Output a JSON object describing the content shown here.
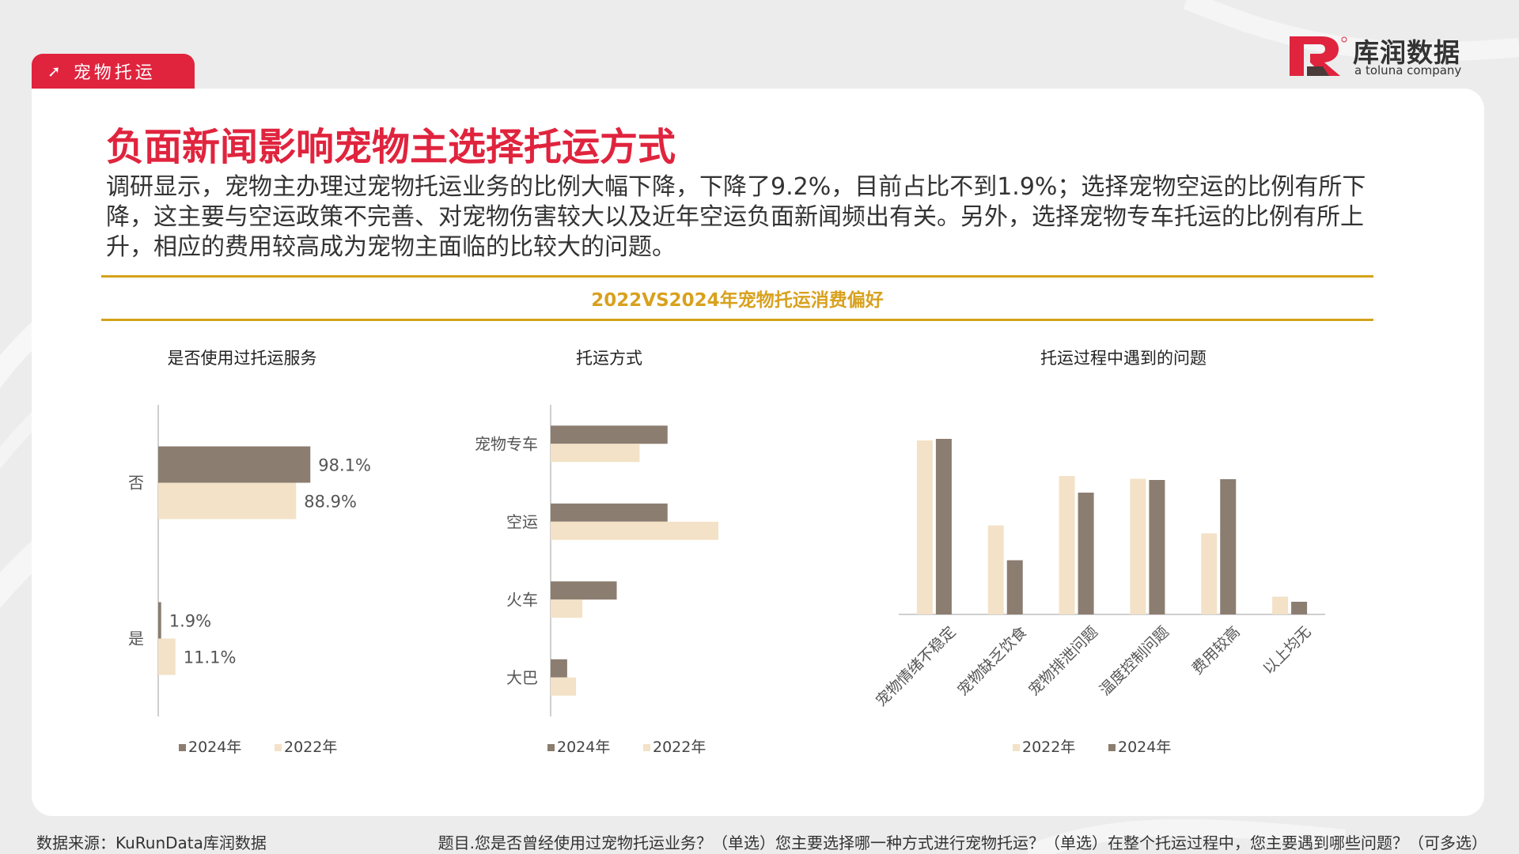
{
  "tab": {
    "label": "宠物托运"
  },
  "logo": {
    "cn": "库润数据",
    "en": "a toluna company"
  },
  "title": "负面新闻影响宠物主选择托运方式",
  "description": "调研显示，宠物主办理过宠物托运业务的比例大幅下降，下降了9.2%，目前占比不到1.9%；选择宠物空运的比例有所下降，这主要与空运政策不完善、对宠物伤害较大以及近年空运负面新闻频出有关。另外，选择宠物专车托运的比例有所上升，相应的费用较高成为宠物主面临的比较大的问题。",
  "banner": "2022VS2024年宠物托运消费偏好",
  "colors": {
    "accent": "#e0243e",
    "gold": "#d4a21a",
    "series2024": "#8b7d70",
    "series2022": "#f3e2c7"
  },
  "chart_data": [
    {
      "type": "bar",
      "orientation": "horizontal",
      "title": "是否使用过托运服务",
      "categories": [
        "否",
        "是"
      ],
      "series": [
        {
          "name": "2024年",
          "values": [
            98.1,
            1.9
          ],
          "labels": [
            "98.1%",
            "1.9%"
          ]
        },
        {
          "name": "2022年",
          "values": [
            88.9,
            11.1
          ],
          "labels": [
            "88.9%",
            "11.1%"
          ]
        }
      ],
      "xlim": [
        0,
        100
      ],
      "legend": [
        "2024年",
        "2022年"
      ],
      "legend_position": "bottom"
    },
    {
      "type": "bar",
      "orientation": "horizontal",
      "title": "托运方式",
      "categories": [
        "宠物专车",
        "空运",
        "火车",
        "大巴"
      ],
      "series": [
        {
          "name": "2024年",
          "values": [
            46,
            46,
            26,
            6.5
          ]
        },
        {
          "name": "2022年",
          "values": [
            35,
            66,
            12.5,
            10
          ]
        }
      ],
      "xlim": [
        0,
        80
      ],
      "legend": [
        "2024年",
        "2022年"
      ],
      "legend_position": "bottom"
    },
    {
      "type": "bar",
      "orientation": "vertical",
      "title": "托运过程中遇到的问题",
      "categories": [
        "宠物情绪不稳定",
        "宠物缺乏饮食",
        "宠物排泄问题",
        "温度控制问题",
        "费用较高",
        "以上均无"
      ],
      "series": [
        {
          "name": "2022年",
          "values": [
            44,
            22.5,
            35,
            34.3,
            20.5,
            4.5
          ]
        },
        {
          "name": "2024年",
          "values": [
            44.4,
            13.7,
            30.8,
            34,
            34.2,
            3.2
          ]
        }
      ],
      "ylim": [
        0,
        50
      ],
      "legend": [
        "2022年",
        "2024年"
      ],
      "legend_position": "bottom"
    }
  ],
  "footer": {
    "source": "数据来源：KuRunData库润数据",
    "question": "题目.您是否曾经使用过宠物托运业务？（单选）您主要选择哪一种方式进行宠物托运？（单选）在整个托运过程中，您主要遇到哪些问题？（可多选）"
  }
}
